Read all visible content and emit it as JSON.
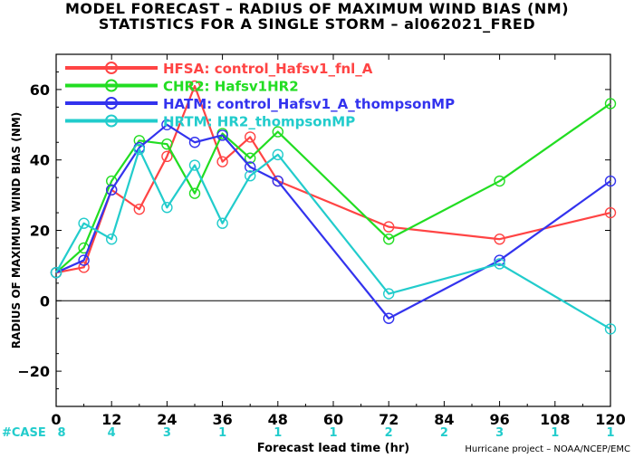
{
  "chart_data": {
    "type": "line",
    "title": "MODEL FORECAST – RADIUS OF MAXIMUM WIND BIAS (NM)",
    "subtitle": "STATISTICS FOR A SINGLE STORM – al062021_FRED",
    "xlabel": "Forecast lead time (hr)",
    "ylabel": "RADIUS OF MAXIMUM WIND BIAS (NM)",
    "xlim": [
      0,
      120
    ],
    "ylim": [
      -30,
      70
    ],
    "xticks": [
      0,
      12,
      24,
      36,
      48,
      60,
      72,
      84,
      96,
      108,
      120
    ],
    "yticks": [
      -20,
      0,
      20,
      40,
      60
    ],
    "grid": false,
    "zero_line": true,
    "legend_position": "top-left",
    "series": [
      {
        "name": "HFSA: control_Hafsv1_fnl_A",
        "color": "#ff4444",
        "x": [
          0,
          6,
          12,
          18,
          24,
          30,
          36,
          42,
          48,
          72,
          96,
          120
        ],
        "y": [
          8,
          9.5,
          31.5,
          26,
          41,
          61,
          39.5,
          46.5,
          34,
          21,
          17.5,
          25
        ]
      },
      {
        "name": "CHR2: Hafsv1HR2",
        "color": "#22dd22",
        "x": [
          0,
          6,
          12,
          18,
          24,
          30,
          36,
          42,
          48,
          72,
          96,
          120
        ],
        "y": [
          8,
          15,
          34,
          45.5,
          44.5,
          30.5,
          47.5,
          40.5,
          48,
          17.5,
          34,
          56
        ]
      },
      {
        "name": "HATM: control_Hafsv1_A_thompsonMP",
        "color": "#3333ee",
        "x": [
          0,
          6,
          12,
          18,
          24,
          30,
          36,
          42,
          48,
          72,
          96,
          120
        ],
        "y": [
          8,
          11.5,
          31.5,
          43.5,
          50,
          45,
          47,
          38,
          34,
          -5,
          11.5,
          34
        ]
      },
      {
        "name": "HRTM: HR2_thompsonMP",
        "color": "#22cccc",
        "x": [
          0,
          6,
          12,
          18,
          24,
          30,
          36,
          42,
          48,
          72,
          96,
          120
        ],
        "y": [
          8,
          22,
          17.5,
          43,
          26.5,
          38.5,
          22,
          35.5,
          41.5,
          2,
          10.5,
          -8
        ]
      }
    ],
    "case_label": "#CASE",
    "case_x": [
      0,
      12,
      24,
      36,
      48,
      60,
      72,
      84,
      96,
      108,
      120
    ],
    "case_counts": [
      "8",
      "4",
      "3",
      "1",
      "1",
      "1",
      "2",
      "2",
      "3",
      "1",
      "1"
    ],
    "credit": "Hurricane project – NOAA/NCEP/EMC"
  }
}
